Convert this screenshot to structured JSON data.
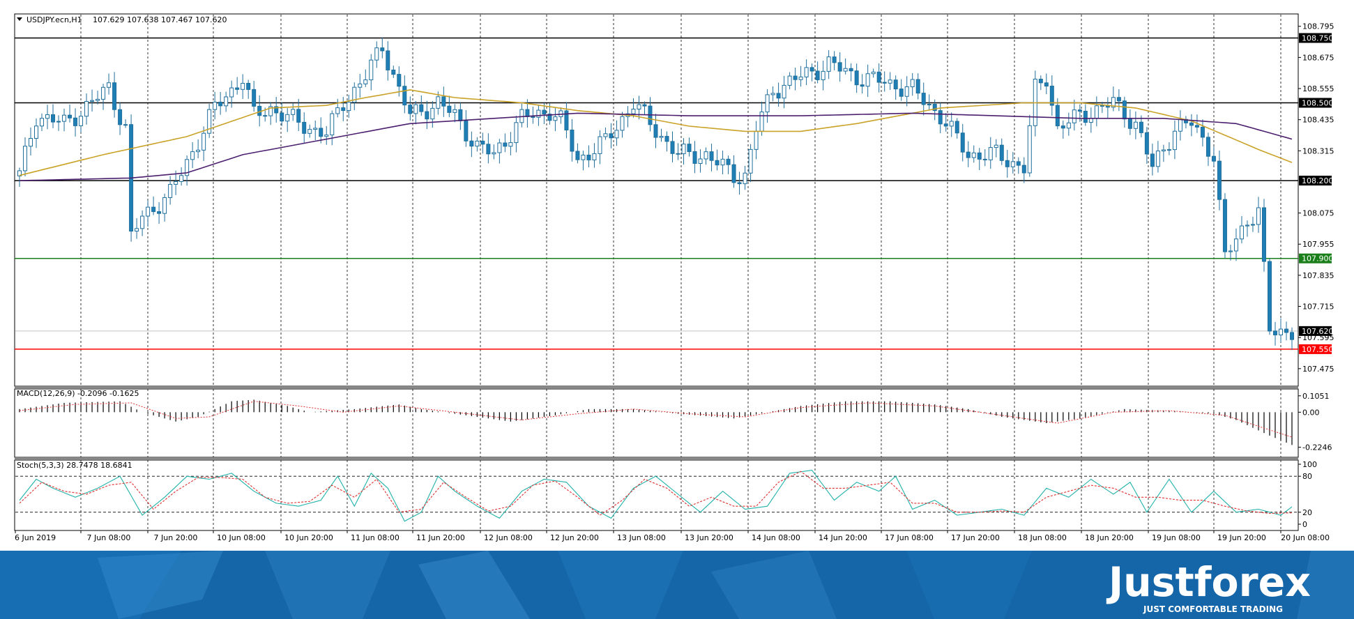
{
  "main": {
    "symbol_label": "USDJPY.ecn,H1",
    "ohlc_label": "107.629 107.638 107.467 107.620",
    "y_range": [
      107.41,
      108.84
    ],
    "y_ticks": [
      "108.795",
      "108.675",
      "108.555",
      "108.435",
      "108.315",
      "108.075",
      "107.955",
      "107.835",
      "107.715",
      "107.595",
      "107.475"
    ],
    "levels": [
      {
        "price": 108.75,
        "label": "108.750",
        "color": "#000000"
      },
      {
        "price": 108.5,
        "label": "108.500",
        "color": "#000000"
      },
      {
        "price": 108.2,
        "label": "108.200",
        "color": "#000000"
      },
      {
        "price": 107.9,
        "label": "107.900",
        "color": "#1a7f1a"
      },
      {
        "price": 107.55,
        "label": "107.550",
        "color": "#ff0000"
      }
    ],
    "current_price": {
      "price": 107.62,
      "label": "107.620"
    }
  },
  "chart_data": [
    {
      "type": "candlestick",
      "title": "USDJPY.ecn,H1",
      "ylim": [
        107.41,
        108.84
      ],
      "x_labels": [
        "6 Jun 2019",
        "7 Jun 08:00",
        "7 Jun 20:00",
        "10 Jun 08:00",
        "10 Jun 20:00",
        "11 Jun 08:00",
        "11 Jun 20:00",
        "12 Jun 08:00",
        "12 Jun 20:00",
        "13 Jun 08:00",
        "13 Jun 20:00",
        "14 Jun 08:00",
        "14 Jun 20:00",
        "17 Jun 08:00",
        "17 Jun 20:00",
        "18 Jun 08:00",
        "18 Jun 20:00",
        "19 Jun 08:00",
        "19 Jun 20:00",
        "20 Jun 08:00"
      ],
      "close_path": [
        [
          0,
          108.22
        ],
        [
          3,
          108.45
        ],
        [
          8,
          108.42
        ],
        [
          13,
          108.5
        ],
        [
          16,
          108.56
        ],
        [
          18,
          108.45
        ],
        [
          19,
          108.4
        ],
        [
          20,
          107.98
        ],
        [
          22,
          108.06
        ],
        [
          27,
          108.15
        ],
        [
          30,
          108.27
        ],
        [
          35,
          108.48
        ],
        [
          38,
          108.55
        ],
        [
          40,
          108.6
        ],
        [
          42,
          108.45
        ],
        [
          45,
          108.48
        ],
        [
          50,
          108.42
        ],
        [
          55,
          108.38
        ],
        [
          58,
          108.5
        ],
        [
          62,
          108.6
        ],
        [
          65,
          108.72
        ],
        [
          68,
          108.55
        ],
        [
          70,
          108.45
        ],
        [
          75,
          108.5
        ],
        [
          78,
          108.45
        ],
        [
          82,
          108.33
        ],
        [
          85,
          108.3
        ],
        [
          90,
          108.44
        ],
        [
          95,
          108.47
        ],
        [
          97,
          108.43
        ],
        [
          100,
          108.28
        ],
        [
          105,
          108.35
        ],
        [
          110,
          108.5
        ],
        [
          113,
          108.42
        ],
        [
          118,
          108.3
        ],
        [
          123,
          108.3
        ],
        [
          128,
          108.22
        ],
        [
          130,
          108.22
        ],
        [
          132,
          108.4
        ],
        [
          135,
          108.55
        ],
        [
          140,
          108.6
        ],
        [
          145,
          108.65
        ],
        [
          150,
          108.6
        ],
        [
          155,
          108.58
        ],
        [
          160,
          108.55
        ],
        [
          165,
          108.45
        ],
        [
          170,
          108.3
        ],
        [
          175,
          108.3
        ],
        [
          180,
          108.25
        ],
        [
          182,
          108.55
        ],
        [
          184,
          108.6
        ],
        [
          186,
          108.4
        ],
        [
          190,
          108.45
        ],
        [
          196,
          108.5
        ],
        [
          200,
          108.42
        ],
        [
          203,
          108.25
        ],
        [
          207,
          108.4
        ],
        [
          210,
          108.42
        ],
        [
          214,
          108.3
        ],
        [
          216,
          107.9
        ],
        [
          220,
          108.05
        ],
        [
          222,
          108.08
        ],
        [
          224,
          107.62
        ],
        [
          228,
          107.62
        ]
      ],
      "series": [
        {
          "name": "",
          "color": "#c9a227",
          "points": [
            [
              0,
              108.22
            ],
            [
              15,
              108.3
            ],
            [
              30,
              108.37
            ],
            [
              45,
              108.48
            ],
            [
              55,
              108.49
            ],
            [
              62,
              108.52
            ],
            [
              70,
              108.55
            ],
            [
              78,
              108.52
            ],
            [
              90,
              108.5
            ],
            [
              100,
              108.47
            ],
            [
              110,
              108.45
            ],
            [
              120,
              108.41
            ],
            [
              130,
              108.39
            ],
            [
              140,
              108.39
            ],
            [
              150,
              108.42
            ],
            [
              165,
              108.48
            ],
            [
              180,
              108.5
            ],
            [
              190,
              108.5
            ],
            [
              200,
              108.48
            ],
            [
              210,
              108.43
            ],
            [
              222,
              108.32
            ],
            [
              228,
              108.27
            ]
          ]
        },
        {
          "name": "",
          "color": "#4b1e6e",
          "points": [
            [
              0,
              108.2
            ],
            [
              20,
              108.21
            ],
            [
              30,
              108.23
            ],
            [
              40,
              108.3
            ],
            [
              55,
              108.36
            ],
            [
              70,
              108.42
            ],
            [
              85,
              108.44
            ],
            [
              100,
              108.46
            ],
            [
              120,
              108.45
            ],
            [
              140,
              108.45
            ],
            [
              160,
              108.46
            ],
            [
              175,
              108.45
            ],
            [
              190,
              108.44
            ],
            [
              205,
              108.44
            ],
            [
              218,
              108.42
            ],
            [
              228,
              108.36
            ]
          ]
        }
      ]
    },
    {
      "type": "bar",
      "title": "MACD(12,26,9) -0.2096 -0.1625",
      "y_ticks": [
        "0.1051",
        "0.00",
        "-0.2246"
      ],
      "ylim": [
        -0.28,
        0.14
      ],
      "values_path": [
        [
          0,
          0.02
        ],
        [
          8,
          0.06
        ],
        [
          18,
          0.07
        ],
        [
          22,
          0.0
        ],
        [
          28,
          -0.06
        ],
        [
          32,
          -0.03
        ],
        [
          38,
          0.07
        ],
        [
          42,
          0.08
        ],
        [
          48,
          0.04
        ],
        [
          52,
          0.0
        ],
        [
          60,
          0.02
        ],
        [
          68,
          0.05
        ],
        [
          72,
          0.02
        ],
        [
          80,
          -0.02
        ],
        [
          88,
          -0.06
        ],
        [
          96,
          -0.02
        ],
        [
          102,
          0.02
        ],
        [
          110,
          0.02
        ],
        [
          118,
          -0.01
        ],
        [
          128,
          -0.04
        ],
        [
          134,
          0.0
        ],
        [
          140,
          0.04
        ],
        [
          148,
          0.07
        ],
        [
          156,
          0.07
        ],
        [
          164,
          0.05
        ],
        [
          170,
          0.02
        ],
        [
          176,
          -0.03
        ],
        [
          184,
          -0.07
        ],
        [
          190,
          -0.04
        ],
        [
          198,
          0.02
        ],
        [
          206,
          0.01
        ],
        [
          214,
          -0.01
        ],
        [
          218,
          -0.05
        ],
        [
          224,
          -0.15
        ],
        [
          228,
          -0.21
        ]
      ],
      "signal_path": [
        [
          0,
          0.01
        ],
        [
          10,
          0.05
        ],
        [
          20,
          0.06
        ],
        [
          28,
          -0.04
        ],
        [
          34,
          -0.03
        ],
        [
          42,
          0.07
        ],
        [
          50,
          0.04
        ],
        [
          58,
          0.0
        ],
        [
          68,
          0.04
        ],
        [
          78,
          0.0
        ],
        [
          90,
          -0.05
        ],
        [
          100,
          -0.01
        ],
        [
          110,
          0.02
        ],
        [
          120,
          -0.01
        ],
        [
          130,
          -0.03
        ],
        [
          140,
          0.03
        ],
        [
          152,
          0.06
        ],
        [
          164,
          0.04
        ],
        [
          176,
          -0.02
        ],
        [
          186,
          -0.07
        ],
        [
          196,
          0.0
        ],
        [
          206,
          0.01
        ],
        [
          216,
          -0.02
        ],
        [
          228,
          -0.16
        ]
      ],
      "signal_color": "#e03030",
      "bar_color": "#000000"
    },
    {
      "type": "line",
      "title": "Stoch(5,3,3) 28.7478 18.6841",
      "y_ticks": [
        "100",
        "80",
        "20",
        "0"
      ],
      "ylim": [
        0,
        100
      ],
      "series": [
        {
          "name": "",
          "color": "#20b2aa",
          "points": [
            [
              0,
              40
            ],
            [
              3,
              75
            ],
            [
              6,
              60
            ],
            [
              10,
              45
            ],
            [
              14,
              60
            ],
            [
              18,
              80
            ],
            [
              22,
              15
            ],
            [
              26,
              45
            ],
            [
              30,
              80
            ],
            [
              34,
              75
            ],
            [
              38,
              85
            ],
            [
              42,
              55
            ],
            [
              46,
              35
            ],
            [
              50,
              30
            ],
            [
              54,
              40
            ],
            [
              57,
              80
            ],
            [
              60,
              30
            ],
            [
              63,
              85
            ],
            [
              66,
              60
            ],
            [
              69,
              5
            ],
            [
              72,
              20
            ],
            [
              75,
              80
            ],
            [
              78,
              55
            ],
            [
              82,
              30
            ],
            [
              86,
              10
            ],
            [
              90,
              55
            ],
            [
              94,
              75
            ],
            [
              98,
              70
            ],
            [
              102,
              30
            ],
            [
              106,
              10
            ],
            [
              110,
              60
            ],
            [
              114,
              80
            ],
            [
              118,
              50
            ],
            [
              122,
              20
            ],
            [
              126,
              55
            ],
            [
              130,
              25
            ],
            [
              134,
              30
            ],
            [
              138,
              85
            ],
            [
              142,
              90
            ],
            [
              146,
              40
            ],
            [
              150,
              70
            ],
            [
              154,
              55
            ],
            [
              157,
              80
            ],
            [
              160,
              25
            ],
            [
              164,
              40
            ],
            [
              168,
              15
            ],
            [
              172,
              20
            ],
            [
              176,
              25
            ],
            [
              180,
              15
            ],
            [
              184,
              60
            ],
            [
              188,
              45
            ],
            [
              192,
              75
            ],
            [
              196,
              50
            ],
            [
              199,
              70
            ],
            [
              202,
              20
            ],
            [
              206,
              75
            ],
            [
              210,
              20
            ],
            [
              214,
              55
            ],
            [
              218,
              20
            ],
            [
              222,
              25
            ],
            [
              226,
              15
            ],
            [
              228,
              29
            ]
          ]
        },
        {
          "name": "",
          "color": "#e03030",
          "points": [
            [
              0,
              35
            ],
            [
              4,
              70
            ],
            [
              8,
              55
            ],
            [
              12,
              50
            ],
            [
              16,
              65
            ],
            [
              20,
              70
            ],
            [
              24,
              25
            ],
            [
              28,
              55
            ],
            [
              32,
              78
            ],
            [
              36,
              78
            ],
            [
              40,
              75
            ],
            [
              44,
              45
            ],
            [
              48,
              35
            ],
            [
              52,
              38
            ],
            [
              56,
              65
            ],
            [
              60,
              45
            ],
            [
              64,
              75
            ],
            [
              68,
              20
            ],
            [
              72,
              25
            ],
            [
              76,
              70
            ],
            [
              80,
              45
            ],
            [
              84,
              22
            ],
            [
              88,
              30
            ],
            [
              92,
              65
            ],
            [
              96,
              72
            ],
            [
              100,
              45
            ],
            [
              104,
              15
            ],
            [
              108,
              40
            ],
            [
              112,
              75
            ],
            [
              116,
              60
            ],
            [
              120,
              30
            ],
            [
              124,
              45
            ],
            [
              128,
              30
            ],
            [
              132,
              30
            ],
            [
              136,
              70
            ],
            [
              140,
              88
            ],
            [
              144,
              60
            ],
            [
              148,
              60
            ],
            [
              152,
              65
            ],
            [
              156,
              70
            ],
            [
              160,
              35
            ],
            [
              164,
              35
            ],
            [
              168,
              20
            ],
            [
              172,
              20
            ],
            [
              176,
              22
            ],
            [
              180,
              20
            ],
            [
              184,
              45
            ],
            [
              188,
              55
            ],
            [
              192,
              65
            ],
            [
              196,
              60
            ],
            [
              200,
              45
            ],
            [
              204,
              45
            ],
            [
              208,
              40
            ],
            [
              212,
              40
            ],
            [
              216,
              30
            ],
            [
              220,
              22
            ],
            [
              224,
              18
            ],
            [
              228,
              19
            ]
          ]
        }
      ]
    }
  ],
  "macd": {
    "label": "MACD(12,26,9) -0.2096 -0.1625"
  },
  "stoch": {
    "label": "Stoch(5,3,3) 28.7478 18.6841"
  },
  "brand": {
    "name": "Justforex",
    "tagline": "JUST COMFORTABLE TRADING",
    "bg_color": "#1566a8"
  }
}
